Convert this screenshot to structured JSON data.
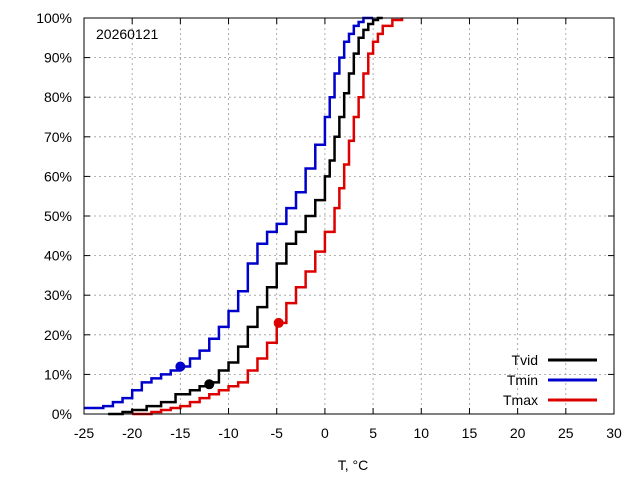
{
  "chart_data": {
    "type": "line",
    "annotation": "20260121",
    "xlabel": "T, °C",
    "ylabel": "",
    "xlim": [
      -25,
      30
    ],
    "ylim": [
      0,
      100
    ],
    "x_ticks": [
      -25,
      -20,
      -15,
      -10,
      -5,
      0,
      5,
      10,
      15,
      20,
      25,
      30
    ],
    "y_ticks": [
      "0%",
      "10%",
      "20%",
      "30%",
      "40%",
      "50%",
      "60%",
      "70%",
      "80%",
      "90%",
      "100%"
    ],
    "grid": true,
    "legend_position": "bottom-right",
    "series": [
      {
        "name": "Tvid",
        "color": "#000000",
        "x": [
          -22.5,
          -21,
          -20,
          -18.5,
          -17,
          -15.5,
          -14,
          -13,
          -12,
          -11,
          -10,
          -9,
          -8,
          -7,
          -6,
          -5,
          -4,
          -3,
          -2,
          -1,
          0,
          0.5,
          1,
          1.5,
          2,
          2.5,
          3,
          3.5,
          4,
          4.5,
          5,
          5.5,
          6
        ],
        "y": [
          0,
          0.5,
          1,
          2,
          3,
          5,
          6,
          7,
          8,
          11,
          13,
          17,
          22,
          27,
          32,
          38,
          43,
          46,
          50,
          54,
          60,
          64,
          70,
          75,
          81,
          86,
          91,
          95,
          97,
          98.5,
          99.5,
          100,
          100
        ],
        "marker": {
          "x": -12,
          "y": 7.5
        }
      },
      {
        "name": "Tmin",
        "color": "#0000cc",
        "x": [
          -25,
          -23,
          -22,
          -21,
          -20,
          -19,
          -18,
          -17,
          -16,
          -15,
          -14,
          -13,
          -12,
          -11,
          -10,
          -9,
          -8,
          -7,
          -6,
          -5,
          -4,
          -3,
          -2,
          -1,
          0,
          0.5,
          1,
          1.5,
          2,
          2.5,
          3,
          3.5,
          4,
          4.5,
          5
        ],
        "y": [
          1.5,
          2,
          3,
          4,
          6,
          8,
          9,
          10,
          11,
          12,
          14,
          16,
          19,
          22,
          26,
          31,
          38,
          43,
          46,
          48,
          52,
          56,
          62,
          68,
          75,
          80,
          86,
          90,
          94,
          96,
          98,
          99,
          100,
          100,
          100
        ],
        "marker": {
          "x": -15,
          "y": 12
        }
      },
      {
        "name": "Tmax",
        "color": "#dd0000",
        "x": [
          -20,
          -18,
          -17,
          -16,
          -15,
          -14,
          -13,
          -12,
          -11,
          -10,
          -9,
          -8,
          -7,
          -6,
          -5,
          -4,
          -3,
          -2,
          -1,
          0,
          1,
          1.5,
          2,
          2.5,
          3,
          3.5,
          4,
          4.5,
          5,
          5.5,
          6,
          7,
          8
        ],
        "y": [
          0,
          0.5,
          1,
          1.5,
          2,
          3,
          4,
          5,
          6,
          7,
          8,
          11,
          14,
          18,
          23,
          28,
          32,
          36,
          41,
          46,
          52,
          57,
          63,
          69,
          75,
          80,
          86,
          91,
          94,
          96,
          98,
          99.5,
          100
        ],
        "marker": {
          "x": -4.8,
          "y": 23
        }
      }
    ]
  }
}
